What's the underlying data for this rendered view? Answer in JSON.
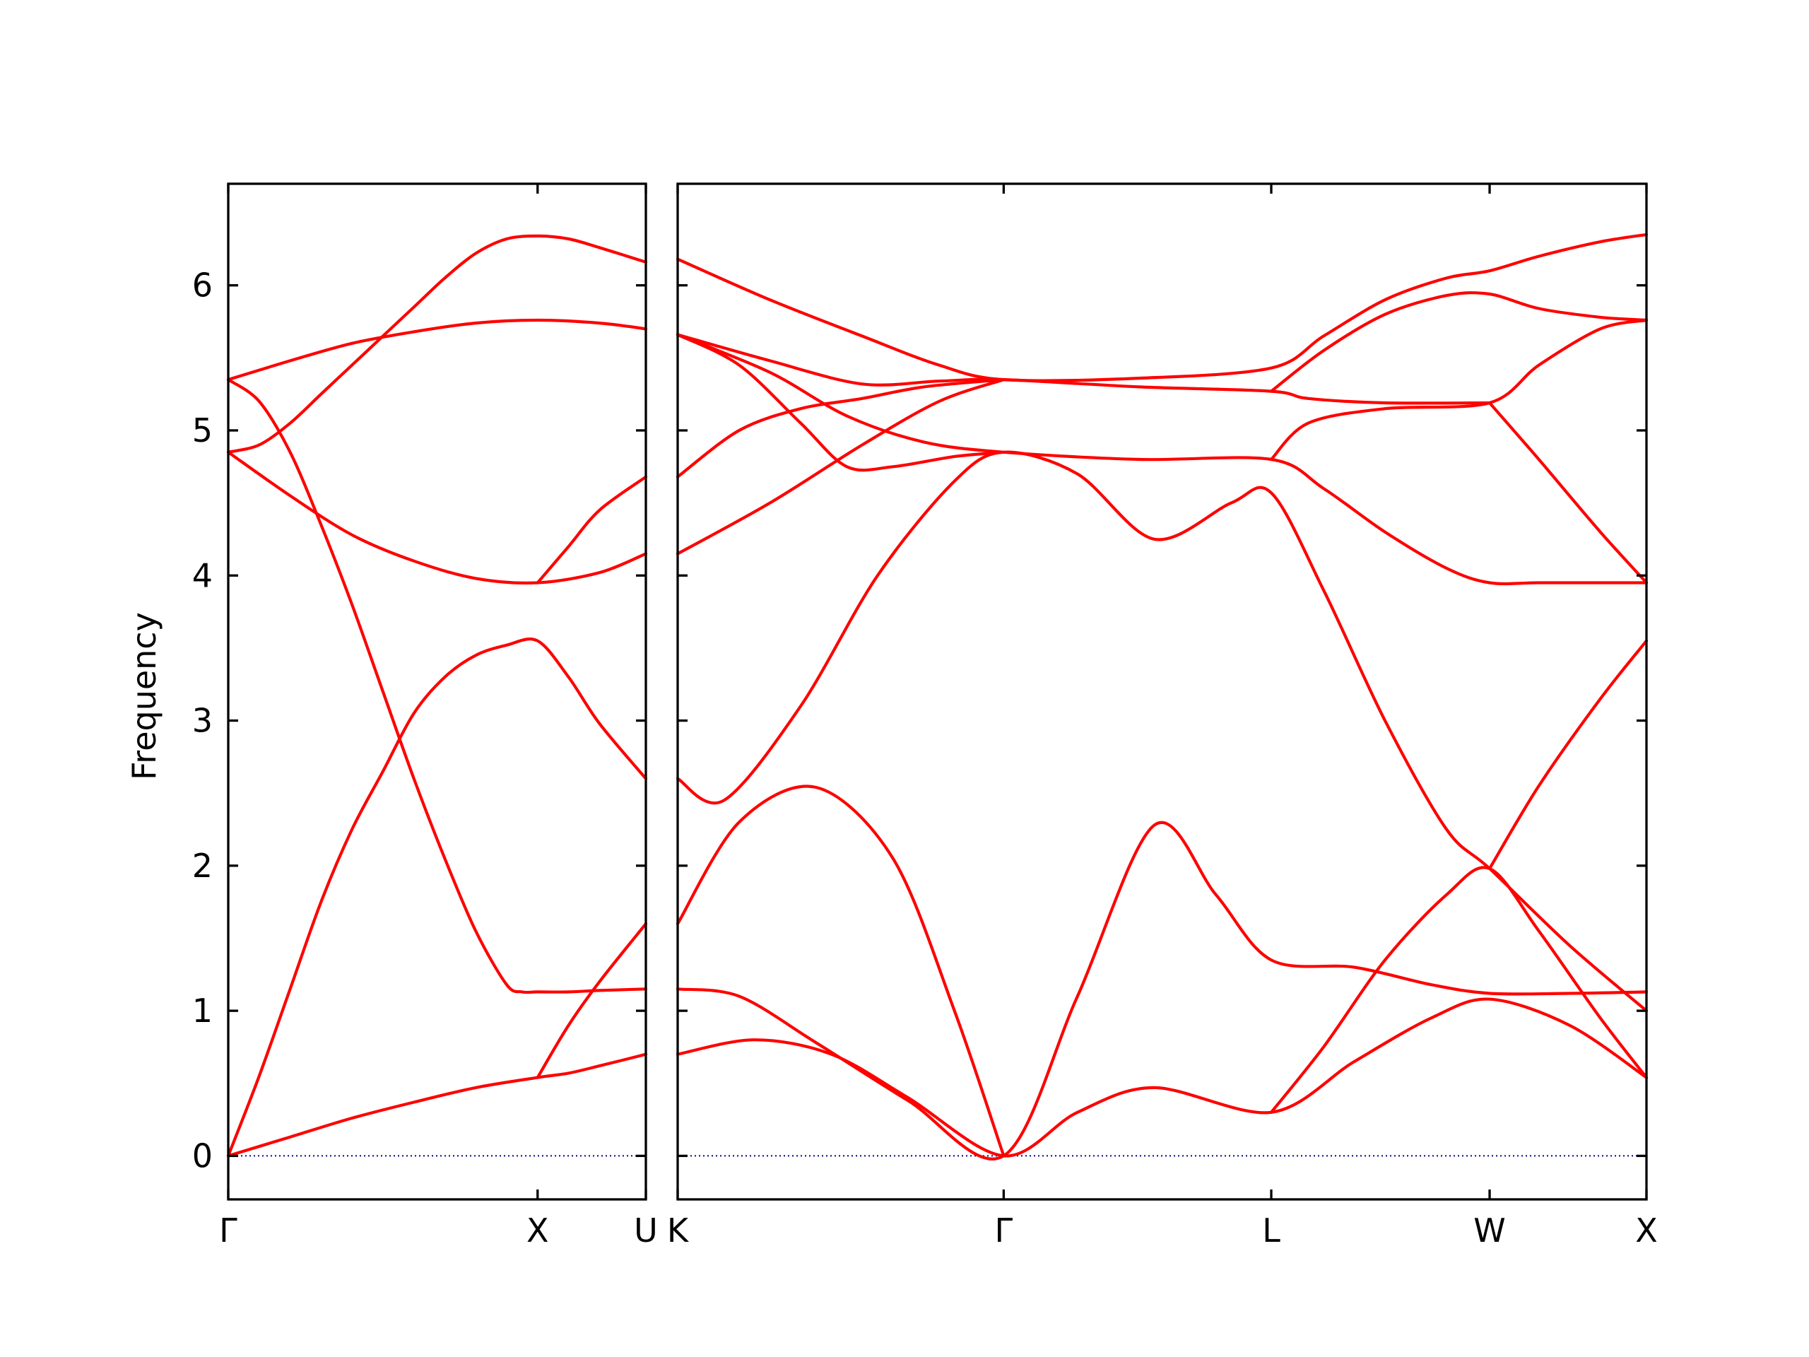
{
  "chart_data": {
    "type": "line",
    "title": "",
    "ylabel": "Frequency",
    "xlabel": "",
    "ylim": [
      -0.3,
      6.7
    ],
    "yticks": [
      0,
      1,
      2,
      3,
      4,
      5,
      6
    ],
    "band_color": "#ff0000",
    "zero_line_color": "#00008b",
    "grid": false,
    "legend": "none",
    "panels": [
      {
        "xlim": [
          0,
          1.35
        ],
        "tick_positions": [
          0,
          1.0,
          1.35
        ],
        "tick_labels": [
          "Γ",
          "X",
          "U"
        ],
        "bands": [
          {
            "name": "",
            "x": [
              0,
              0.2,
              0.4,
              0.6,
              0.8,
              1.0,
              1.1,
              1.2,
              1.35
            ],
            "y": [
              0,
              0.13,
              0.26,
              0.37,
              0.47,
              0.54,
              0.57,
              0.62,
              0.7
            ]
          },
          {
            "name": "",
            "x": [
              0,
              0.1,
              0.2,
              0.3,
              0.4,
              0.5,
              0.6,
              0.7,
              0.8,
              0.9,
              1.0,
              1.1,
              1.2,
              1.35
            ],
            "y": [
              0,
              0.55,
              1.15,
              1.75,
              2.25,
              2.65,
              3.05,
              3.3,
              3.45,
              3.52,
              3.55,
              3.3,
              2.98,
              2.6
            ]
          },
          {
            "name": "",
            "x": [
              0,
              0.1,
              0.2,
              0.3,
              0.4,
              0.5,
              0.6,
              0.7,
              0.8,
              0.9,
              0.95,
              1.0,
              1.1,
              1.2,
              1.35
            ],
            "y": [
              5.35,
              5.2,
              4.85,
              4.35,
              3.8,
              3.2,
              2.6,
              2.05,
              1.55,
              1.18,
              1.13,
              1.13,
              1.13,
              1.14,
              1.15
            ]
          },
          {
            "name": "",
            "x": [
              1.0,
              1.1,
              1.2,
              1.35
            ],
            "y": [
              0.54,
              0.9,
              1.2,
              1.6
            ]
          },
          {
            "name": "",
            "x": [
              0,
              0.2,
              0.4,
              0.6,
              0.8,
              1.0,
              1.2,
              1.35
            ],
            "y": [
              4.85,
              4.55,
              4.28,
              4.1,
              3.98,
              3.95,
              4.02,
              4.15
            ]
          },
          {
            "name": "",
            "x": [
              1.0,
              1.1,
              1.2,
              1.35
            ],
            "y": [
              3.95,
              4.2,
              4.45,
              4.68
            ]
          },
          {
            "name": "",
            "x": [
              0,
              0.2,
              0.4,
              0.6,
              0.8,
              1.0,
              1.2,
              1.35
            ],
            "y": [
              5.35,
              5.48,
              5.6,
              5.68,
              5.74,
              5.76,
              5.74,
              5.7
            ]
          },
          {
            "name": "",
            "x": [
              0,
              0.1,
              0.2,
              0.3,
              0.4,
              0.5,
              0.6,
              0.7,
              0.8,
              0.9,
              1.0,
              1.1,
              1.2,
              1.35
            ],
            "y": [
              4.85,
              4.9,
              5.05,
              5.25,
              5.45,
              5.65,
              5.85,
              6.05,
              6.22,
              6.32,
              6.34,
              6.32,
              6.26,
              6.16
            ]
          }
        ]
      },
      {
        "xlim": [
          0,
          3.15
        ],
        "tick_positions": [
          0,
          1.06,
          1.93,
          2.64,
          3.15
        ],
        "tick_labels": [
          "K",
          "Γ",
          "L",
          "W",
          "X"
        ],
        "bands": [
          {
            "name": "",
            "x": [
              0,
              0.25,
              0.5,
              0.75,
              1.06,
              1.3,
              1.55,
              1.93,
              2.2,
              2.45,
              2.64,
              2.9,
              3.15
            ],
            "y": [
              0.7,
              0.8,
              0.7,
              0.4,
              0,
              0.3,
              0.47,
              0.3,
              0.65,
              0.95,
              1.08,
              0.9,
              0.54
            ]
          },
          {
            "name": "",
            "x": [
              0,
              0.2,
              0.45,
              0.75,
              1.06,
              1.3,
              1.55,
              1.75,
              1.93,
              2.2,
              2.45,
              2.64,
              2.9,
              3.15
            ],
            "y": [
              1.15,
              1.1,
              0.78,
              0.38,
              0,
              1.1,
              2.28,
              1.8,
              1.35,
              1.3,
              1.18,
              1.12,
              1.12,
              1.13
            ]
          },
          {
            "name": "",
            "x": [
              0,
              0.2,
              0.45,
              0.7,
              0.9,
              1.06
            ],
            "y": [
              1.6,
              2.3,
              2.54,
              2.05,
              1.0,
              0
            ]
          },
          {
            "name": "",
            "x": [
              1.93,
              2.1,
              2.3,
              2.5,
              2.64,
              2.8,
              3.0,
              3.15
            ],
            "y": [
              0.3,
              0.75,
              1.35,
              1.8,
              1.98,
              1.55,
              0.95,
              0.54
            ]
          },
          {
            "name": "",
            "x": [
              2.64,
              2.8,
              3.0,
              3.15
            ],
            "y": [
              1.98,
              2.55,
              3.15,
              3.55
            ]
          },
          {
            "name": "",
            "x": [
              0,
              0.15,
              0.4,
              0.65,
              0.9,
              1.06,
              1.3,
              1.55,
              1.8,
              1.93,
              2.1,
              2.3,
              2.5,
              2.64,
              2.9,
              3.15
            ],
            "y": [
              2.6,
              2.45,
              3.1,
              4.0,
              4.65,
              4.85,
              4.7,
              4.25,
              4.5,
              4.57,
              3.9,
              3.0,
              2.25,
              1.98,
              1.45,
              1.0
            ]
          },
          {
            "name": "",
            "x": [
              0,
              0.3,
              0.6,
              0.85,
              1.06
            ],
            "y": [
              4.15,
              4.5,
              4.9,
              5.2,
              5.35
            ]
          },
          {
            "name": "",
            "x": [
              0,
              0.2,
              0.4,
              0.6,
              0.8,
              1.06
            ],
            "y": [
              4.68,
              5.0,
              5.15,
              5.22,
              5.3,
              5.35
            ]
          },
          {
            "name": "",
            "x": [
              0,
              0.2,
              0.4,
              0.55,
              0.7,
              0.9,
              1.06
            ],
            "y": [
              5.66,
              5.45,
              5.05,
              4.75,
              4.75,
              4.82,
              4.85
            ]
          },
          {
            "name": "",
            "x": [
              0,
              0.3,
              0.55,
              0.8,
              1.06,
              1.5,
              1.93,
              2.1,
              2.3,
              2.5,
              2.64,
              2.8,
              3.0,
              3.15
            ],
            "y": [
              5.66,
              5.4,
              5.1,
              4.92,
              4.85,
              4.8,
              4.8,
              4.6,
              4.3,
              4.05,
              3.95,
              3.95,
              3.95,
              3.95
            ]
          },
          {
            "name": "",
            "x": [
              0,
              0.3,
              0.6,
              0.85,
              1.06,
              1.5,
              1.93,
              2.05,
              2.3,
              2.64
            ],
            "y": [
              5.66,
              5.48,
              5.32,
              5.34,
              5.35,
              5.3,
              5.27,
              5.22,
              5.19,
              5.19
            ]
          },
          {
            "name": "",
            "x": [
              1.93,
              2.05,
              2.3,
              2.64,
              2.8,
              3.0,
              3.15
            ],
            "y": [
              4.8,
              5.05,
              5.15,
              5.19,
              5.45,
              5.7,
              5.76
            ]
          },
          {
            "name": "",
            "x": [
              2.64,
              2.8,
              3.0,
              3.15
            ],
            "y": [
              5.19,
              4.8,
              4.3,
              3.95
            ]
          },
          {
            "name": "",
            "x": [
              0,
              0.3,
              0.6,
              0.85,
              1.06,
              1.5,
              1.93,
              2.1,
              2.3,
              2.5,
              2.64,
              2.8,
              3.0,
              3.15
            ],
            "y": [
              6.18,
              5.9,
              5.65,
              5.45,
              5.35,
              5.36,
              5.43,
              5.65,
              5.9,
              6.05,
              6.1,
              6.2,
              6.3,
              6.35
            ]
          },
          {
            "name": "",
            "x": [
              1.93,
              2.1,
              2.3,
              2.5,
              2.64,
              2.8,
              3.0,
              3.15
            ],
            "y": [
              5.27,
              5.55,
              5.8,
              5.93,
              5.94,
              5.84,
              5.78,
              5.76
            ]
          }
        ]
      }
    ]
  }
}
